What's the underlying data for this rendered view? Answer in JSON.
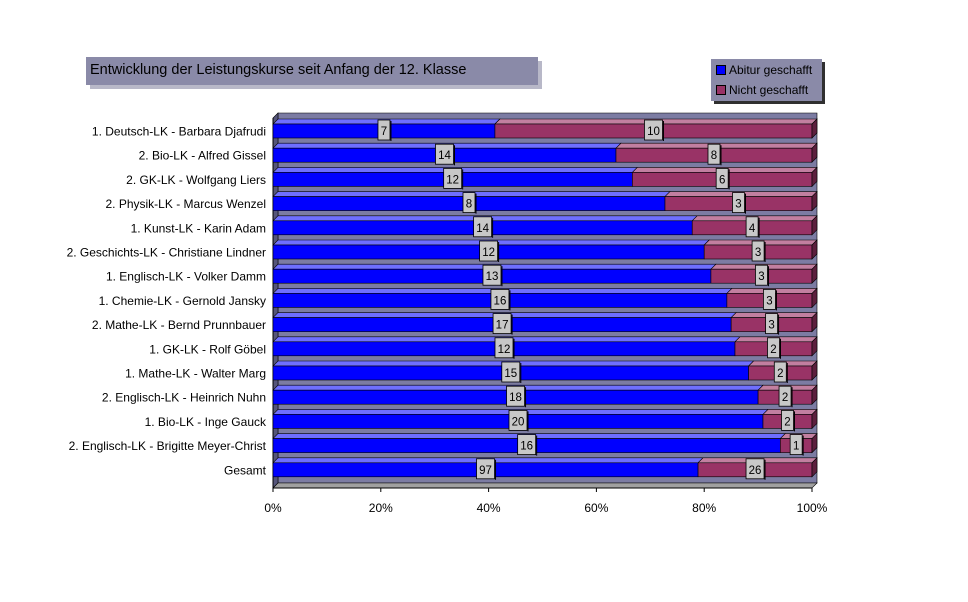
{
  "chart_data": {
    "type": "bar",
    "orientation": "horizontal",
    "stacking": "percent",
    "title": "Entwicklung der Leistungskurse seit Anfang der 12. Klasse",
    "categories": [
      "1. Deutsch-LK - Barbara Djafrudi",
      "2. Bio-LK - Alfred Gissel",
      "2. GK-LK - Wolfgang Liers",
      "2. Physik-LK - Marcus Wenzel",
      "1. Kunst-LK - Karin Adam",
      "2. Geschichts-LK - Christiane Lindner",
      "1. Englisch-LK - Volker Damm",
      "1. Chemie-LK - Gernold Jansky",
      "2. Mathe-LK - Bernd Prunnbauer",
      "1. GK-LK - Rolf Göbel",
      "1. Mathe-LK - Walter Marg",
      "2. Englisch-LK - Heinrich Nuhn",
      "1. Bio-LK - Inge Gauck",
      "2. Englisch-LK - Brigitte Meyer-Christ",
      "Gesamt"
    ],
    "series": [
      {
        "name": "Abitur geschafft",
        "color": "#0000ff",
        "values": [
          7,
          14,
          12,
          8,
          14,
          12,
          13,
          16,
          17,
          12,
          15,
          18,
          20,
          16,
          97
        ]
      },
      {
        "name": "Nicht geschafft",
        "color": "#993366",
        "values": [
          10,
          8,
          6,
          3,
          4,
          3,
          3,
          3,
          3,
          2,
          2,
          2,
          2,
          1,
          26
        ]
      }
    ],
    "xticks": [
      "0%",
      "20%",
      "40%",
      "60%",
      "80%",
      "100%"
    ],
    "xlim": [
      0,
      100
    ],
    "data_labels": "value",
    "legend_position": "top-right",
    "three_d": true
  }
}
